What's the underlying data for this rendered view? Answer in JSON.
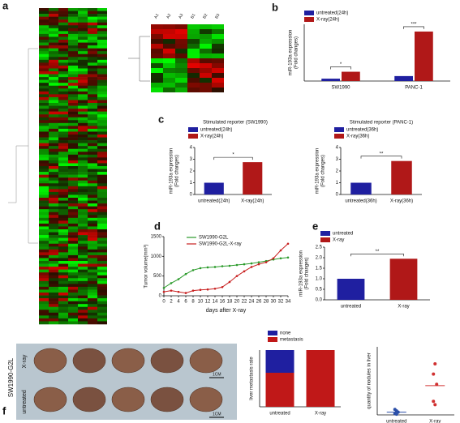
{
  "panel_labels": [
    "a",
    "b",
    "c",
    "d",
    "e",
    "f"
  ],
  "heatmap_columns": [
    "A1",
    "A2",
    "A3",
    "B1",
    "B2",
    "B3"
  ],
  "photo": {
    "group_label": "SW1990-G2L",
    "row_labels": [
      "X-ray",
      "untreated"
    ],
    "scale_bars": [
      "1CM",
      "1CM"
    ]
  },
  "chart_data": [
    {
      "type": "bar",
      "y_label": [
        "miR-193a expression",
        "(Fold changes)"
      ],
      "categories": [
        "SW1990",
        "PANC-1"
      ],
      "series": [
        {
          "name": "untreated(24h)",
          "color": "#1f1fa0",
          "values": [
            2.3,
            4.8
          ]
        },
        {
          "name": "X-ray(24h)",
          "color": "#b01818",
          "values": [
            9,
            48
          ]
        }
      ],
      "ylim": [
        0,
        55
      ],
      "significance": {
        "labels": [
          "*",
          "***"
        ],
        "span": "category"
      }
    },
    {
      "type": "bar",
      "title": "Stimulated reporter (SW1990)",
      "y_label": [
        "miR-193a expression",
        "(Fold changes)"
      ],
      "categories": [
        "untreated(24h)",
        "X-ray(24h)"
      ],
      "series": [
        {
          "name": "untreated(24h)",
          "color": "#1f1fa0",
          "values": [
            1,
            null
          ]
        },
        {
          "name": "X-ray(24h)",
          "color": "#b01818",
          "values": [
            null,
            2.75
          ]
        }
      ],
      "ylim": [
        0,
        4
      ],
      "yticks": [
        0,
        1,
        2,
        3,
        4
      ],
      "significance": {
        "labels": [
          "*"
        ],
        "span": "all"
      }
    },
    {
      "type": "bar",
      "title": "Stimulated reporter (PANC-1)",
      "y_label": [
        "miR-193a expression",
        "(Fold changes)"
      ],
      "categories": [
        "untreated(36h)",
        "X-ray(36h)"
      ],
      "series": [
        {
          "name": "untreated(36h)",
          "color": "#1f1fa0",
          "values": [
            1,
            null
          ]
        },
        {
          "name": "X-ray(36h)",
          "color": "#b01818",
          "values": [
            null,
            2.85
          ]
        }
      ],
      "ylim": [
        0,
        4
      ],
      "yticks": [
        0,
        1,
        2,
        3,
        4
      ],
      "significance": {
        "labels": [
          "**"
        ],
        "span": "all"
      }
    },
    {
      "type": "line",
      "y_label": [
        "Tumor volume(mm³)"
      ],
      "x_label": "days after X-ray",
      "x": [
        0,
        2,
        4,
        6,
        8,
        10,
        12,
        14,
        16,
        18,
        20,
        22,
        24,
        26,
        28,
        30,
        32,
        34
      ],
      "series": [
        {
          "name": "SW1990-G2L",
          "color": "#2a9a2a",
          "values": [
            200,
            320,
            420,
            550,
            650,
            700,
            720,
            730,
            750,
            760,
            780,
            800,
            820,
            850,
            880,
            920,
            950,
            970
          ]
        },
        {
          "name": "SW1990-G2L-X-ray",
          "color": "#c82020",
          "values": [
            100,
            130,
            100,
            70,
            130,
            150,
            160,
            180,
            220,
            350,
            500,
            620,
            730,
            800,
            850,
            950,
            1150,
            1320
          ]
        }
      ],
      "xlim": [
        0,
        34
      ],
      "xticks": [
        0,
        2,
        4,
        6,
        8,
        10,
        12,
        14,
        16,
        18,
        20,
        22,
        24,
        26,
        28,
        30,
        32,
        34
      ],
      "ylim": [
        0,
        1500
      ],
      "yticks": [
        0,
        500,
        1000,
        1500
      ]
    },
    {
      "type": "bar",
      "y_label": [
        "miR-193a expression",
        "(Fold changes)"
      ],
      "categories": [
        "untreated",
        "X-ray"
      ],
      "series": [
        {
          "name": "untreated",
          "color": "#1f1fa0",
          "values": [
            1,
            null
          ]
        },
        {
          "name": "X-ray",
          "color": "#b01818",
          "values": [
            null,
            1.95
          ]
        }
      ],
      "ylim": [
        0,
        2.5
      ],
      "yticks": [
        {
          "value": 0,
          "label": "0.0"
        },
        {
          "value": 0.5,
          "label": "0.5"
        },
        {
          "value": 1,
          "label": "1.0"
        },
        {
          "value": 1.5,
          "label": "1.5"
        },
        {
          "value": 2,
          "label": "2.0"
        },
        {
          "value": 2.5,
          "label": "2.5"
        }
      ],
      "significance": {
        "labels": [
          "**"
        ],
        "span": "all"
      }
    },
    {
      "type": "stacked",
      "y_label": [
        "liver metastasis rate"
      ],
      "categories": [
        "untreated",
        "X-ray"
      ],
      "series": [
        {
          "name": "metastasis",
          "color": "#c01818",
          "values": [
            0.6,
            1
          ]
        },
        {
          "name": "none",
          "color": "#1f1fa0",
          "values": [
            0.4,
            0
          ]
        }
      ],
      "ylim": [
        0,
        1
      ]
    },
    {
      "type": "dot",
      "y_label": [
        "quantity of nodules in liver"
      ],
      "categories": [
        "untreated",
        "X-ray"
      ],
      "colors": [
        "#2b4fa8",
        "#d03030"
      ],
      "points": [
        [
          8,
          6,
          4,
          2,
          1
        ],
        [
          60,
          75,
          45,
          20,
          15
        ]
      ],
      "means": [
        4,
        43
      ],
      "ylim": [
        0,
        100
      ]
    }
  ]
}
